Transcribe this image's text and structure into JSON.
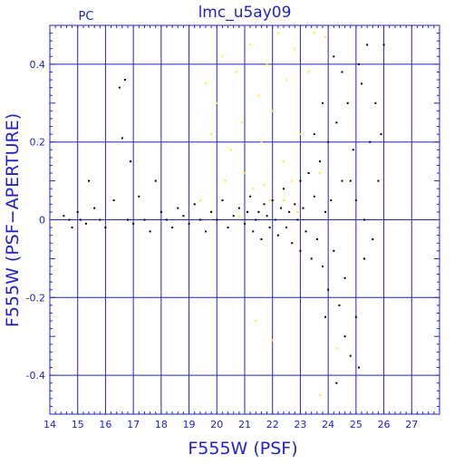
{
  "chart_data": {
    "type": "scatter",
    "title": "lmc_u5ay09",
    "corner_label": "PC",
    "xlabel": "F555W (PSF)",
    "ylabel": "F555W (PSF−APERTURE)",
    "xlim": [
      14,
      28
    ],
    "ylim": [
      -0.5,
      0.5
    ],
    "x_ticks": [
      "14",
      "15",
      "16",
      "17",
      "18",
      "19",
      "20",
      "21",
      "22",
      "23",
      "24",
      "25",
      "26",
      "27"
    ],
    "y_ticks": [
      "0.4",
      "0.2",
      "0",
      "-0.2",
      "-0.4"
    ],
    "y_tick_values": [
      0.4,
      0.2,
      0,
      -0.2,
      -0.4
    ],
    "grid": true,
    "colors": {
      "axis": "#2222cc",
      "primary": "#000000",
      "secondary": "#ffee00"
    },
    "series": [
      {
        "color": "#000000",
        "values": [
          [
            14.5,
            0.01
          ],
          [
            14.7,
            0.0
          ],
          [
            14.8,
            -0.02
          ],
          [
            15.0,
            0.02
          ],
          [
            15.1,
            0.0
          ],
          [
            15.3,
            -0.01
          ],
          [
            15.4,
            0.1
          ],
          [
            15.6,
            0.03
          ],
          [
            15.8,
            0.0
          ],
          [
            16.0,
            -0.02
          ],
          [
            16.3,
            0.05
          ],
          [
            16.5,
            0.34
          ],
          [
            16.7,
            0.36
          ],
          [
            16.6,
            0.21
          ],
          [
            16.9,
            0.15
          ],
          [
            16.8,
            0.0
          ],
          [
            17.0,
            -0.01
          ],
          [
            17.2,
            0.06
          ],
          [
            17.4,
            0.0
          ],
          [
            17.6,
            -0.03
          ],
          [
            17.8,
            0.1
          ],
          [
            18.0,
            0.02
          ],
          [
            18.2,
            0.0
          ],
          [
            18.4,
            -0.02
          ],
          [
            18.6,
            0.03
          ],
          [
            18.8,
            0.01
          ],
          [
            19.0,
            -0.01
          ],
          [
            19.2,
            0.04
          ],
          [
            19.4,
            0.0
          ],
          [
            19.6,
            -0.03
          ],
          [
            19.8,
            0.02
          ],
          [
            20.0,
            0.0
          ],
          [
            20.2,
            0.05
          ],
          [
            20.4,
            -0.02
          ],
          [
            20.6,
            0.01
          ],
          [
            20.8,
            0.03
          ],
          [
            21.0,
            -0.01
          ],
          [
            21.1,
            0.02
          ],
          [
            21.2,
            0.06
          ],
          [
            21.3,
            -0.03
          ],
          [
            21.4,
            0.0
          ],
          [
            21.5,
            0.02
          ],
          [
            21.6,
            -0.05
          ],
          [
            21.7,
            0.04
          ],
          [
            21.8,
            0.01
          ],
          [
            21.9,
            -0.02
          ],
          [
            22.0,
            0.05
          ],
          [
            22.1,
            0.0
          ],
          [
            22.2,
            -0.04
          ],
          [
            22.3,
            0.03
          ],
          [
            22.4,
            0.08
          ],
          [
            22.5,
            -0.02
          ],
          [
            22.6,
            0.02
          ],
          [
            22.7,
            -0.06
          ],
          [
            22.8,
            0.04
          ],
          [
            22.9,
            0.0
          ],
          [
            23.0,
            0.1
          ],
          [
            23.0,
            -0.08
          ],
          [
            23.1,
            0.03
          ],
          [
            23.2,
            -0.03
          ],
          [
            23.3,
            0.12
          ],
          [
            23.4,
            -0.1
          ],
          [
            23.5,
            0.06
          ],
          [
            23.6,
            -0.05
          ],
          [
            23.7,
            0.15
          ],
          [
            23.8,
            -0.12
          ],
          [
            23.9,
            0.02
          ],
          [
            24.0,
            0.2
          ],
          [
            24.0,
            -0.18
          ],
          [
            24.1,
            0.05
          ],
          [
            24.2,
            -0.08
          ],
          [
            24.3,
            0.25
          ],
          [
            24.4,
            -0.22
          ],
          [
            24.5,
            0.1
          ],
          [
            24.6,
            -0.3
          ],
          [
            24.7,
            0.3
          ],
          [
            24.8,
            -0.35
          ],
          [
            24.9,
            0.18
          ],
          [
            25.0,
            -0.25
          ],
          [
            25.1,
            0.4
          ],
          [
            25.1,
            -0.38
          ],
          [
            25.2,
            0.35
          ],
          [
            25.3,
            -0.1
          ],
          [
            25.4,
            0.45
          ],
          [
            25.5,
            0.2
          ],
          [
            25.6,
            -0.05
          ],
          [
            25.7,
            0.3
          ],
          [
            25.8,
            0.1
          ],
          [
            25.9,
            0.22
          ],
          [
            26.0,
            0.45
          ],
          [
            24.2,
            0.42
          ],
          [
            24.5,
            0.38
          ],
          [
            23.8,
            0.3
          ],
          [
            23.5,
            0.22
          ],
          [
            24.8,
            0.1
          ],
          [
            25.3,
            0.0
          ],
          [
            25.0,
            0.05
          ],
          [
            24.6,
            -0.15
          ],
          [
            23.9,
            -0.25
          ],
          [
            24.3,
            -0.42
          ]
        ]
      },
      {
        "color": "#ffee00",
        "values": [
          [
            19.6,
            0.35
          ],
          [
            19.8,
            0.22
          ],
          [
            20.0,
            0.3
          ],
          [
            20.2,
            0.42
          ],
          [
            20.3,
            0.1
          ],
          [
            20.5,
            0.18
          ],
          [
            20.7,
            0.38
          ],
          [
            20.9,
            0.25
          ],
          [
            21.0,
            0.12
          ],
          [
            21.2,
            0.45
          ],
          [
            21.3,
            0.08
          ],
          [
            21.5,
            0.32
          ],
          [
            21.6,
            0.2
          ],
          [
            21.8,
            0.4
          ],
          [
            21.9,
            0.05
          ],
          [
            22.0,
            0.28
          ],
          [
            22.2,
            0.48
          ],
          [
            22.4,
            0.15
          ],
          [
            22.5,
            0.36
          ],
          [
            22.7,
            0.1
          ],
          [
            22.8,
            0.44
          ],
          [
            23.0,
            0.22
          ],
          [
            23.1,
            0.03
          ],
          [
            23.3,
            0.38
          ],
          [
            23.5,
            0.48
          ],
          [
            23.7,
            0.12
          ],
          [
            23.9,
            0.47
          ],
          [
            22.4,
            0.05
          ],
          [
            22.9,
            0.02
          ],
          [
            21.7,
            0.09
          ],
          [
            21.4,
            -0.26
          ],
          [
            22.0,
            -0.31
          ],
          [
            23.7,
            -0.45
          ],
          [
            24.3,
            -0.33
          ],
          [
            20.8,
            0.01
          ],
          [
            19.4,
            0.05
          ]
        ]
      }
    ]
  }
}
